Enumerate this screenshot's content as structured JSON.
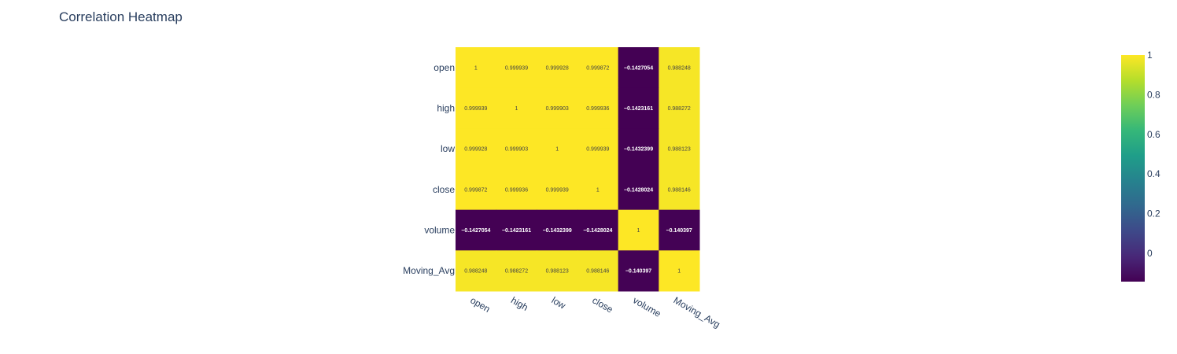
{
  "chart_data": {
    "type": "heatmap",
    "title": "Correlation Heatmap",
    "x_categories": [
      "open",
      "high",
      "low",
      "close",
      "volume",
      "Moving_Avg"
    ],
    "y_categories": [
      "open",
      "high",
      "low",
      "close",
      "volume",
      "Moving_Avg"
    ],
    "z": [
      [
        1,
        0.999939,
        0.999928,
        0.999872,
        -0.1427054,
        0.988248
      ],
      [
        0.999939,
        1,
        0.999903,
        0.999936,
        -0.1423161,
        0.988272
      ],
      [
        0.999928,
        0.999903,
        1,
        0.999939,
        -0.1432399,
        0.988123
      ],
      [
        0.999872,
        0.999936,
        0.999939,
        1,
        -0.1428024,
        0.988146
      ],
      [
        -0.1427054,
        -0.1423161,
        -0.1432399,
        -0.1428024,
        1,
        -0.140397
      ],
      [
        0.988248,
        0.988272,
        0.988123,
        0.988146,
        -0.140397,
        1
      ]
    ],
    "text": [
      [
        "1",
        "0.999939",
        "0.999928",
        "0.999872",
        "−0.1427054",
        "0.988248"
      ],
      [
        "0.999939",
        "1",
        "0.999903",
        "0.999936",
        "−0.1423161",
        "0.988272"
      ],
      [
        "0.999928",
        "0.999903",
        "1",
        "0.999939",
        "−0.1432399",
        "0.988123"
      ],
      [
        "0.999872",
        "0.999936",
        "0.999939",
        "1",
        "−0.1428024",
        "0.988146"
      ],
      [
        "−0.1427054",
        "−0.1423161",
        "−0.1432399",
        "−0.1428024",
        "1",
        "−0.140397"
      ],
      [
        "0.988248",
        "0.988272",
        "0.988123",
        "0.988146",
        "−0.140397",
        "1"
      ]
    ],
    "colorscale": "Viridis",
    "zmin": -0.1432399,
    "zmax": 1,
    "colorbar": {
      "ticks": [
        0,
        0.2,
        0.4,
        0.6,
        0.8,
        1
      ],
      "tick_labels": [
        "0",
        "0.2",
        "0.4",
        "0.6",
        "0.8",
        "1"
      ],
      "position": "right"
    },
    "x_tick_angle": "tilted",
    "grid": false
  },
  "colors": {
    "viridis": [
      "#440154",
      "#482878",
      "#3e4989",
      "#31688e",
      "#26828e",
      "#1f9e89",
      "#35b779",
      "#6ece58",
      "#b5de2b",
      "#fde725"
    ],
    "text_dark": "#2a3f5f",
    "text_light": "#ffffff"
  }
}
